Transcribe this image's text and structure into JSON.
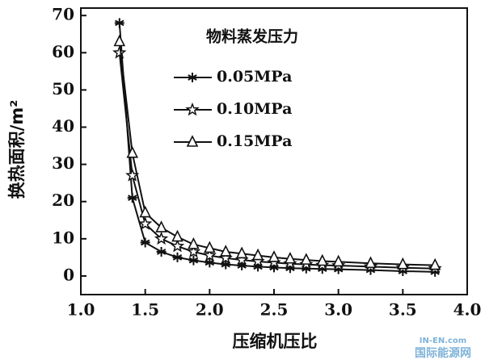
{
  "chart_data": {
    "type": "line",
    "xlabel": "压缩机压比",
    "ylabel": "换热面积/m²",
    "legend_title": "物料蒸发压力",
    "legend": "upper right",
    "x": [
      1.3,
      1.4,
      1.5,
      1.625,
      1.75,
      1.875,
      2.0,
      2.125,
      2.25,
      2.375,
      2.5,
      2.625,
      2.75,
      2.875,
      3.0,
      3.25,
      3.5,
      3.75
    ],
    "series": [
      {
        "name": "0.05MPa",
        "color": "#111111",
        "marker": "asterisk",
        "values": [
          68,
          21,
          9,
          6.5,
          5,
          4.2,
          3.6,
          3.1,
          2.8,
          2.5,
          2.3,
          2.1,
          2,
          1.9,
          1.8,
          1.6,
          1.3,
          1.1
        ]
      },
      {
        "name": "0.10MPa",
        "color": "#111111",
        "marker": "star",
        "values": [
          60,
          27,
          14,
          10,
          8,
          6.5,
          5.5,
          4.8,
          4.3,
          3.9,
          3.6,
          3.3,
          3.1,
          2.9,
          2.8,
          2.5,
          2.2,
          2
        ]
      },
      {
        "name": "0.15MPa",
        "color": "#111111",
        "marker": "triangle",
        "values": [
          63,
          33,
          17,
          13,
          10.5,
          8.5,
          7.5,
          6.5,
          6,
          5.5,
          5,
          4.6,
          4.3,
          4,
          3.8,
          3.4,
          3.1,
          2.9
        ]
      }
    ],
    "xlim": [
      1,
      4
    ],
    "xticks": [
      {
        "value": 1,
        "label": "1.0"
      },
      {
        "value": 1.5,
        "label": "1.5"
      },
      {
        "value": 2,
        "label": "2.0"
      },
      {
        "value": 2.5,
        "label": "2.5"
      },
      {
        "value": 3,
        "label": "3.0"
      },
      {
        "value": 3.5,
        "label": "3.5"
      },
      {
        "value": 4,
        "label": "4.0"
      }
    ],
    "ylim": [
      -5,
      72
    ],
    "yticks": [
      0,
      10,
      20,
      30,
      40,
      50,
      60,
      70
    ],
    "grid": false,
    "watermark": {
      "site": "IN-EN.com",
      "name": "国际能源网"
    }
  }
}
